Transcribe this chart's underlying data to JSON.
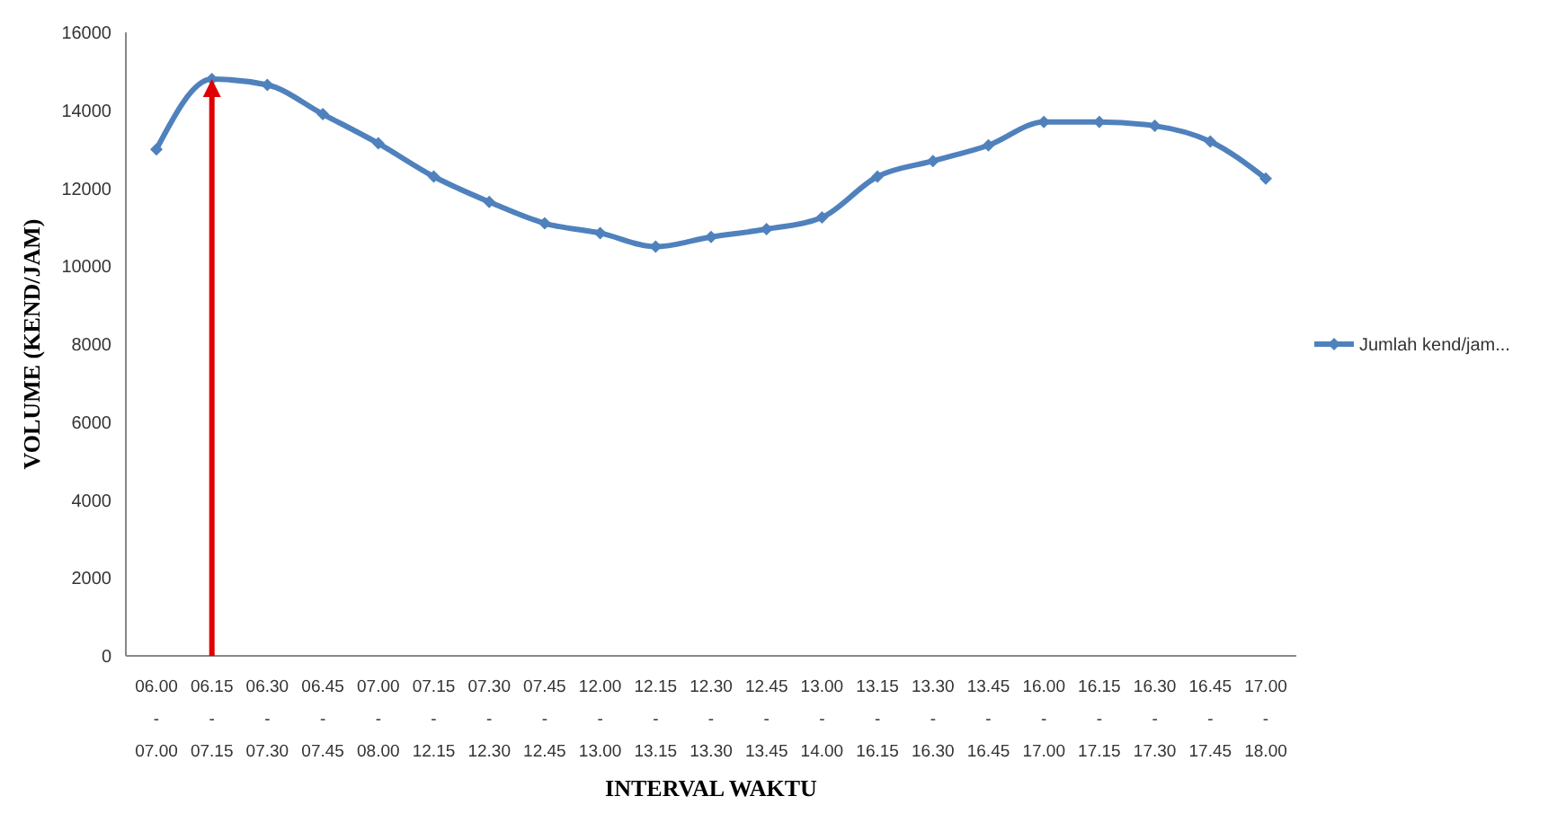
{
  "chart_data": {
    "type": "line",
    "xlabel": "INTERVAL WAKTU",
    "ylabel": "VOLUME (KEND/JAM)",
    "categories": [
      "06.00 - 07.00",
      "06.15 - 07.15",
      "06.30 - 07.30",
      "06.45 - 07.45",
      "07.00 - 08.00",
      "07.15 - 12.15",
      "07.30 - 12.30",
      "07.45 - 12.45",
      "12.00 - 13.00",
      "12.15 - 13.15",
      "12.30 - 13.30",
      "12.45 - 13.45",
      "13.00 - 14.00",
      "13.15 - 16.15",
      "13.30 - 16.30",
      "13.45 - 16.45",
      "16.00 - 17.00",
      "16.15 - 17.15",
      "16.30 - 17.30",
      "16.45 - 17.45",
      "17.00 - 18.00"
    ],
    "series": [
      {
        "name": "Jumlah kend/jam...",
        "color": "#4f81bd",
        "values": [
          13000,
          14800,
          14650,
          13900,
          13150,
          12300,
          11650,
          11100,
          10850,
          10500,
          10750,
          10950,
          11250,
          12300,
          12700,
          13100,
          13700,
          13700,
          13600,
          13200,
          12250
        ]
      }
    ],
    "ylim": [
      0,
      16000
    ],
    "yticks": [
      0,
      2000,
      4000,
      6000,
      8000,
      10000,
      12000,
      14000,
      16000
    ],
    "grid": false,
    "legend": "right",
    "marker": "diamond",
    "line_style": "solid"
  }
}
